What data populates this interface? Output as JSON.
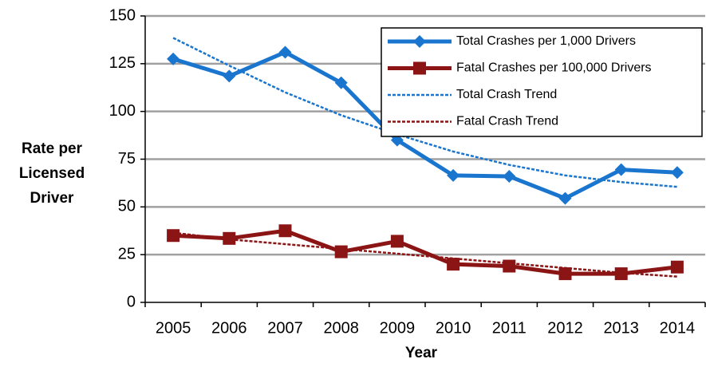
{
  "chart_data": {
    "type": "line",
    "ylabel": [
      "Rate per",
      "Licensed",
      "Driver"
    ],
    "xlabel": "Year",
    "categories": [
      "2005",
      "2006",
      "2007",
      "2008",
      "2009",
      "2010",
      "2011",
      "2012",
      "2013",
      "2014"
    ],
    "series": [
      {
        "name": "Total Crashes per 1,000 Drivers",
        "color": "#1a75cf",
        "marker": "diamond",
        "dash": false,
        "values": [
          127.5,
          118.5,
          131,
          115,
          85,
          66.5,
          66,
          54.5,
          69.5,
          68
        ]
      },
      {
        "name": "Fatal Crashes per 100,000 Drivers",
        "color": "#8b1414",
        "marker": "square",
        "dash": false,
        "values": [
          35,
          33.5,
          37.5,
          26.5,
          32,
          20,
          19,
          15,
          15,
          18.5
        ]
      },
      {
        "name": "Total Crash Trend",
        "color": "#1a75cf",
        "marker": "none",
        "dash": true,
        "values": [
          138.5,
          124,
          110,
          98,
          88,
          79,
          72,
          66.5,
          63,
          60.5
        ]
      },
      {
        "name": "Fatal Crash Trend",
        "color": "#8b1414",
        "marker": "none",
        "dash": true,
        "values": [
          36.5,
          33,
          30.5,
          28,
          25.5,
          23,
          20.5,
          18,
          15.5,
          13.5
        ]
      }
    ],
    "ylim": [
      0,
      150
    ],
    "yticks": [
      0,
      25,
      50,
      75,
      100,
      125,
      150
    ],
    "grid": true,
    "legend": "upper right"
  }
}
